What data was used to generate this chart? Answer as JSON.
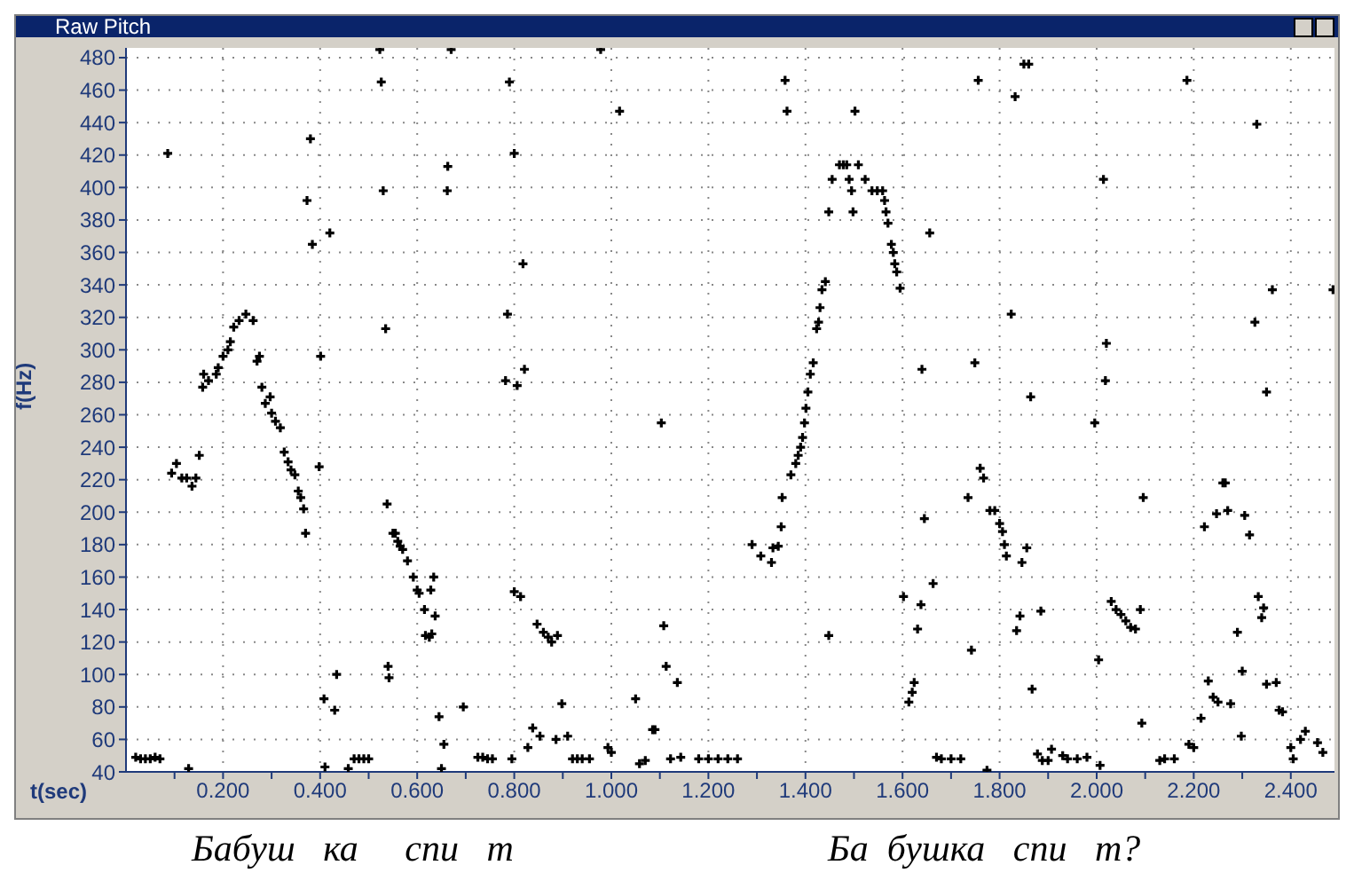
{
  "chart_data": {
    "type": "scatter",
    "title": "Raw Pitch",
    "xlabel": "t(sec)",
    "ylabel": "f(Hz)",
    "annotations": [
      "Бабуш   ка     спи   т",
      "Ба  бушка   спи   т?"
    ],
    "xlim": [
      0,
      2.49
    ],
    "ylim": [
      40,
      486
    ],
    "xticks": [
      {
        "value": 0.1,
        "label": null
      },
      {
        "value": 0.2,
        "label": "0.200"
      },
      {
        "value": 0.3,
        "label": null
      },
      {
        "value": 0.4,
        "label": "0.400"
      },
      {
        "value": 0.5,
        "label": null
      },
      {
        "value": 0.6,
        "label": "0.600"
      },
      {
        "value": 0.7,
        "label": null
      },
      {
        "value": 0.8,
        "label": "0.800"
      },
      {
        "value": 0.9,
        "label": null
      },
      {
        "value": 1.0,
        "label": "1.000"
      },
      {
        "value": 1.1,
        "label": null
      },
      {
        "value": 1.2,
        "label": "1.200"
      },
      {
        "value": 1.3,
        "label": null
      },
      {
        "value": 1.4,
        "label": "1.400"
      },
      {
        "value": 1.5,
        "label": null
      },
      {
        "value": 1.6,
        "label": "1.600"
      },
      {
        "value": 1.7,
        "label": null
      },
      {
        "value": 1.8,
        "label": "1.800"
      },
      {
        "value": 1.9,
        "label": null
      },
      {
        "value": 2.0,
        "label": "2.000"
      },
      {
        "value": 2.1,
        "label": null
      },
      {
        "value": 2.2,
        "label": "2.200"
      },
      {
        "value": 2.3,
        "label": null
      },
      {
        "value": 2.4,
        "label": "2.400"
      }
    ],
    "yticks": [
      40,
      60,
      80,
      100,
      120,
      140,
      160,
      180,
      200,
      220,
      240,
      260,
      280,
      300,
      320,
      340,
      360,
      380,
      400,
      420,
      440,
      460,
      480
    ],
    "grid": true,
    "marker": "cross",
    "series": [
      {
        "color": "#000000",
        "x": [
          0.02,
          0.03,
          0.04,
          0.05,
          0.06,
          0.07,
          0.086,
          0.094,
          0.104,
          0.115,
          0.125,
          0.136,
          0.144,
          0.151,
          0.129,
          0.158,
          0.16,
          0.17,
          0.186,
          0.19,
          0.2,
          0.21,
          0.215,
          0.222,
          0.233,
          0.247,
          0.262,
          0.27,
          0.275,
          0.28,
          0.287,
          0.297,
          0.3,
          0.308,
          0.318,
          0.326,
          0.334,
          0.34,
          0.348,
          0.355,
          0.36,
          0.366,
          0.37,
          0.38,
          0.373,
          0.384,
          0.42,
          0.401,
          0.398,
          0.408,
          0.43,
          0.434,
          0.41,
          0.458,
          0.47,
          0.48,
          0.49,
          0.5,
          0.523,
          0.526,
          0.53,
          0.535,
          0.67,
          0.79,
          0.663,
          0.662,
          0.8,
          0.978,
          1.017,
          0.818,
          0.786,
          0.782,
          0.806,
          0.821,
          1.103,
          0.538,
          0.54,
          0.542,
          0.55,
          0.555,
          0.56,
          0.565,
          0.57,
          0.58,
          0.592,
          0.6,
          0.604,
          0.615,
          0.617,
          0.625,
          0.63,
          0.628,
          0.634,
          0.637,
          0.645,
          0.65,
          0.655,
          0.695,
          0.725,
          0.735,
          0.745,
          0.755,
          0.795,
          0.8,
          0.813,
          0.828,
          0.838,
          0.853,
          0.847,
          0.86,
          0.87,
          0.877,
          0.886,
          0.889,
          0.898,
          0.91,
          0.92,
          0.93,
          0.94,
          0.955,
          0.993,
          1.0,
          1.05,
          1.058,
          1.07,
          1.085,
          1.09,
          1.108,
          1.113,
          1.136,
          1.122,
          1.143,
          1.18,
          1.2,
          1.22,
          1.24,
          1.26,
          1.358,
          1.362,
          1.502,
          1.756,
          1.832,
          1.85,
          1.86,
          2.186,
          2.33,
          2.014,
          2.362,
          2.487,
          2.326,
          1.824,
          1.47,
          1.478,
          1.485,
          1.509,
          1.455,
          1.49,
          1.523,
          1.537,
          1.548,
          1.559,
          1.495,
          1.448,
          1.498,
          1.563,
          1.566,
          1.57,
          1.656,
          1.577,
          1.581,
          1.584,
          1.588,
          1.595,
          1.441,
          1.434,
          1.43,
          1.427,
          1.423,
          1.416,
          1.41,
          1.405,
          1.401,
          1.398,
          1.394,
          1.64,
          1.749,
          1.864,
          1.996,
          2.02,
          2.018,
          2.35,
          1.39,
          1.385,
          1.38,
          1.37,
          1.352,
          1.35,
          1.333,
          1.29,
          1.308,
          1.33,
          1.344,
          1.448,
          1.76,
          1.767,
          1.735,
          1.645,
          1.78,
          1.79,
          1.8,
          1.806,
          1.81,
          1.814,
          1.856,
          1.846,
          1.663,
          1.602,
          1.638,
          1.631,
          1.842,
          1.835,
          1.885,
          1.742,
          1.867,
          1.624,
          1.62,
          1.613,
          1.67,
          1.68,
          1.7,
          1.72,
          1.774,
          1.878,
          1.888,
          1.9,
          1.907,
          1.93,
          1.94,
          1.96,
          1.98,
          2.007,
          2.004,
          2.03,
          2.04,
          2.05,
          2.06,
          2.07,
          2.08,
          2.09,
          2.093,
          2.096,
          2.13,
          2.14,
          2.16,
          2.19,
          2.2,
          2.215,
          2.222,
          2.23,
          2.24,
          2.247,
          2.25,
          2.26,
          2.265,
          2.27,
          2.276,
          2.29,
          2.298,
          2.3,
          2.305,
          2.315,
          2.333,
          2.344,
          2.34,
          2.35,
          2.37,
          2.376,
          2.383,
          2.4,
          2.405,
          2.42,
          2.43,
          2.455,
          2.466
        ],
        "values": [
          49,
          48,
          48,
          48,
          49,
          48,
          421,
          224,
          230,
          221,
          221,
          216,
          221,
          235,
          42,
          277,
          285,
          281,
          285,
          289,
          296,
          300,
          305,
          314,
          318,
          322,
          318,
          293,
          296,
          277,
          267,
          271,
          261,
          256,
          252,
          237,
          231,
          226,
          223,
          213,
          209,
          202,
          187,
          430,
          392,
          365,
          372,
          296,
          228,
          85,
          78,
          100,
          43,
          42,
          48,
          48,
          48,
          48,
          485,
          465,
          398,
          313,
          485,
          465,
          413,
          398,
          421,
          485,
          447,
          353,
          322,
          281,
          278,
          288,
          255,
          205,
          105,
          98,
          187,
          187,
          182,
          179,
          177,
          170,
          160,
          152,
          150,
          140,
          124,
          123,
          125,
          152,
          160,
          136,
          74,
          42,
          57,
          80,
          49,
          49,
          48,
          48,
          48,
          151,
          148,
          55,
          67,
          62,
          131,
          126,
          123,
          120,
          60,
          124,
          82,
          62,
          48,
          48,
          48,
          48,
          55,
          52,
          85,
          45,
          47,
          66,
          66,
          130,
          105,
          95,
          48,
          49,
          48,
          48,
          48,
          48,
          48,
          466,
          447,
          447,
          466,
          456,
          476,
          476,
          466,
          439,
          405,
          337,
          337,
          317,
          322,
          414,
          414,
          414,
          414,
          405,
          405,
          405,
          398,
          398,
          398,
          398,
          385,
          385,
          392,
          385,
          378,
          372,
          365,
          360,
          353,
          348,
          338,
          342,
          337,
          326,
          317,
          313,
          292,
          285,
          274,
          264,
          255,
          246,
          288,
          292,
          271,
          255,
          304,
          281,
          274,
          240,
          235,
          230,
          223,
          209,
          191,
          178,
          180,
          173,
          169,
          179,
          124,
          227,
          221,
          209,
          196,
          201,
          201,
          193,
          188,
          180,
          173,
          178,
          169,
          156,
          148,
          143,
          128,
          136,
          127,
          139,
          115,
          91,
          95,
          89,
          83,
          49,
          48,
          48,
          48,
          41,
          51,
          47,
          47,
          54,
          50,
          48,
          48,
          49,
          44,
          109,
          145,
          140,
          137,
          133,
          129,
          128,
          140,
          70,
          209,
          47,
          48,
          48,
          57,
          55,
          73,
          191,
          96,
          86,
          199,
          83,
          218,
          218,
          201,
          82,
          126,
          62,
          102,
          198,
          186,
          148,
          141,
          135,
          94,
          95,
          78,
          77,
          55,
          48,
          60,
          65,
          58,
          52
        ]
      }
    ]
  }
}
